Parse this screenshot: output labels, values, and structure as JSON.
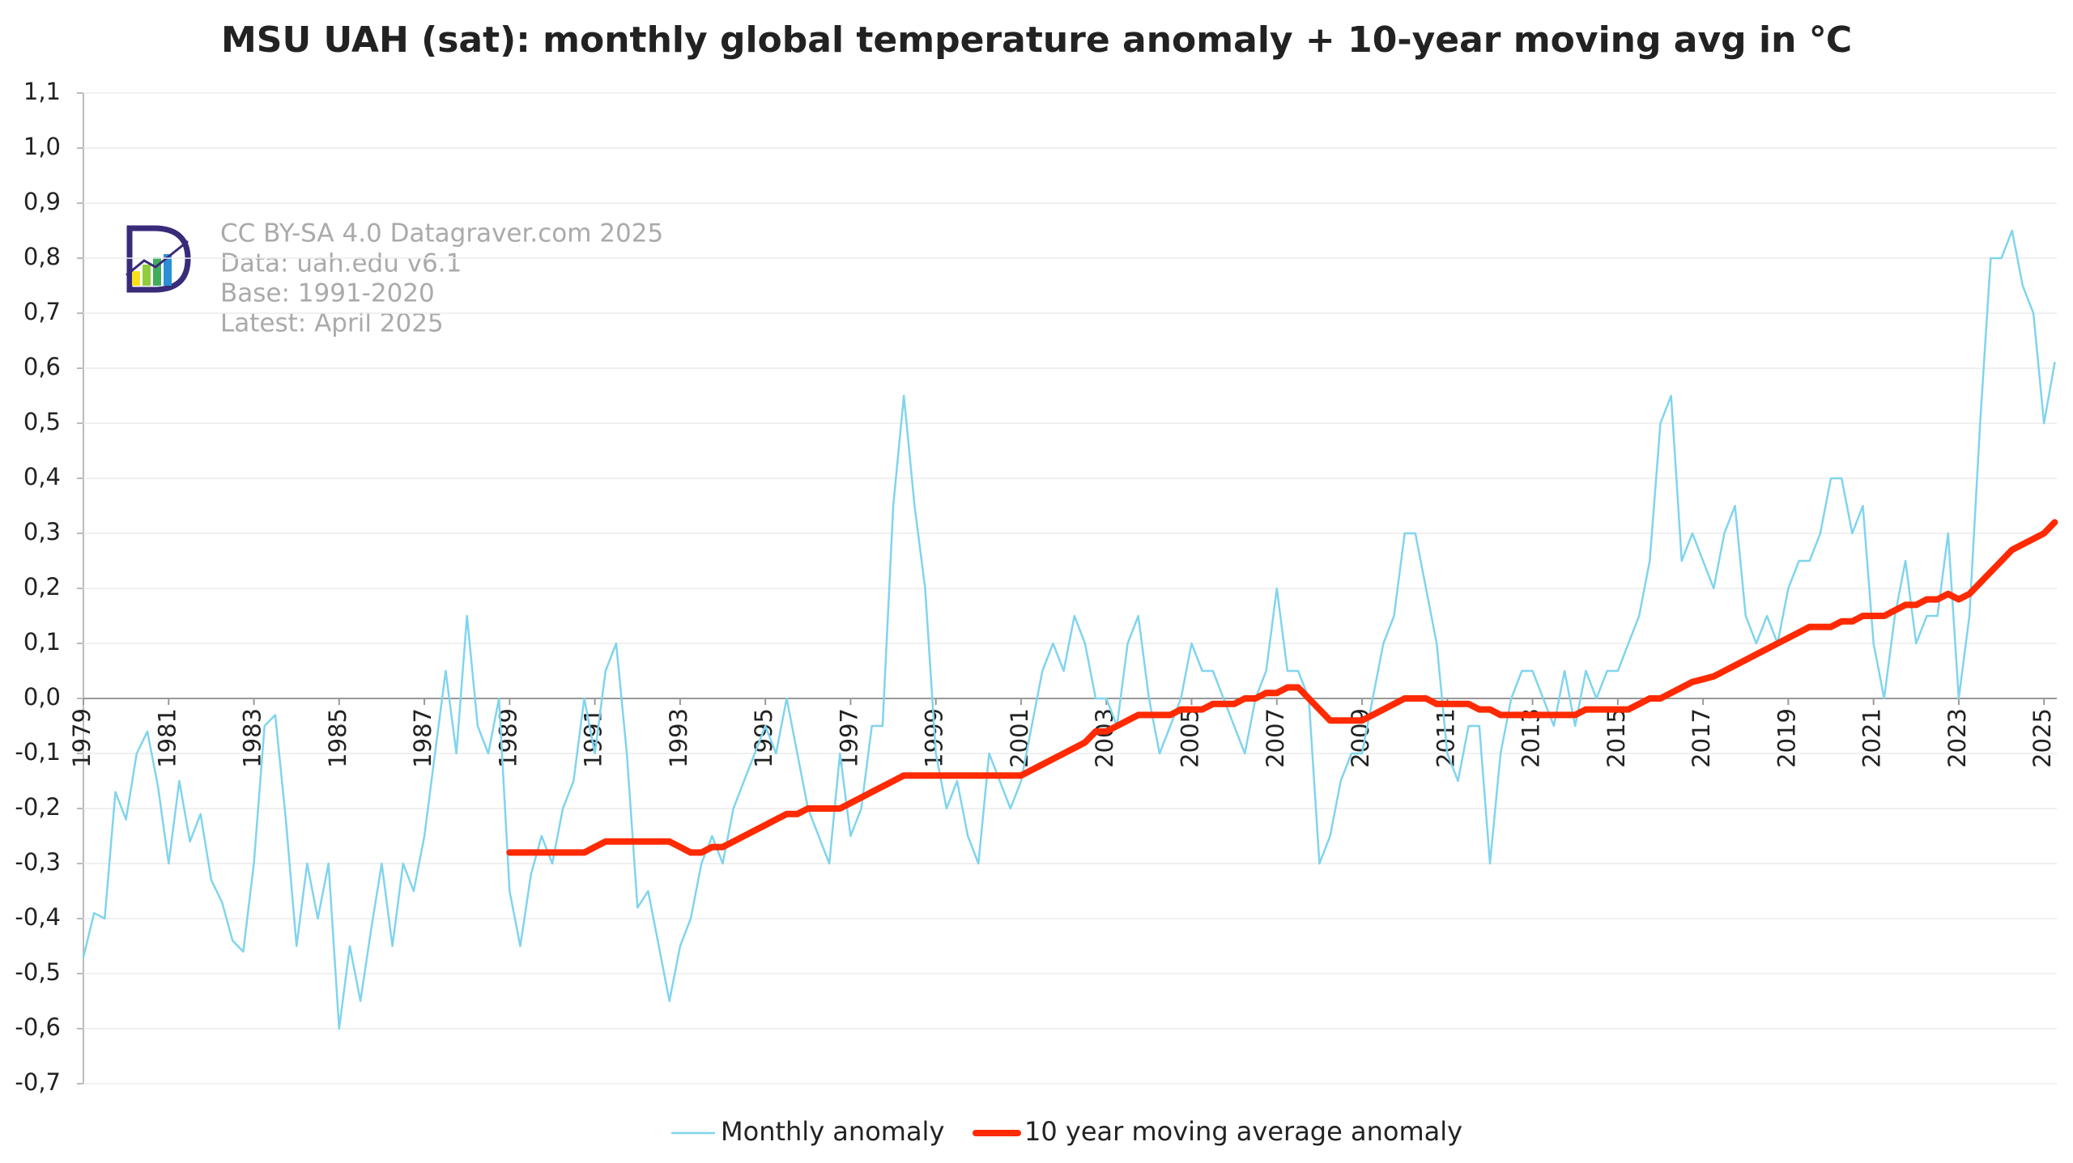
{
  "chart_data": {
    "type": "line",
    "title": "MSU UAH (sat): monthly global temperature anomaly + 10-year moving avg in ℃",
    "annotations": [
      "CC BY-SA 4.0 Datagraver.com 2025",
      "Data: uah.edu v6.1",
      "Base: 1991-2020",
      "Latest: April 2025"
    ],
    "x": [
      1979,
      1979.25,
      1979.5,
      1979.75,
      1980,
      1980.25,
      1980.5,
      1980.75,
      1981,
      1981.25,
      1981.5,
      1981.75,
      1982,
      1982.25,
      1982.5,
      1982.75,
      1983,
      1983.25,
      1983.5,
      1983.75,
      1984,
      1984.25,
      1984.5,
      1984.75,
      1985,
      1985.25,
      1985.5,
      1985.75,
      1986,
      1986.25,
      1986.5,
      1986.75,
      1987,
      1987.25,
      1987.5,
      1987.75,
      1988,
      1988.25,
      1988.5,
      1988.75,
      1989,
      1989.25,
      1989.5,
      1989.75,
      1990,
      1990.25,
      1990.5,
      1990.75,
      1991,
      1991.25,
      1991.5,
      1991.75,
      1992,
      1992.25,
      1992.5,
      1992.75,
      1993,
      1993.25,
      1993.5,
      1993.75,
      1994,
      1994.25,
      1994.5,
      1994.75,
      1995,
      1995.25,
      1995.5,
      1995.75,
      1996,
      1996.25,
      1996.5,
      1996.75,
      1997,
      1997.25,
      1997.5,
      1997.75,
      1998,
      1998.25,
      1998.5,
      1998.75,
      1999,
      1999.25,
      1999.5,
      1999.75,
      2000,
      2000.25,
      2000.5,
      2000.75,
      2001,
      2001.25,
      2001.5,
      2001.75,
      2002,
      2002.25,
      2002.5,
      2002.75,
      2003,
      2003.25,
      2003.5,
      2003.75,
      2004,
      2004.25,
      2004.5,
      2004.75,
      2005,
      2005.25,
      2005.5,
      2005.75,
      2006,
      2006.25,
      2006.5,
      2006.75,
      2007,
      2007.25,
      2007.5,
      2007.75,
      2008,
      2008.25,
      2008.5,
      2008.75,
      2009,
      2009.25,
      2009.5,
      2009.75,
      2010,
      2010.25,
      2010.5,
      2010.75,
      2011,
      2011.25,
      2011.5,
      2011.75,
      2012,
      2012.25,
      2012.5,
      2012.75,
      2013,
      2013.25,
      2013.5,
      2013.75,
      2014,
      2014.25,
      2014.5,
      2014.75,
      2015,
      2015.25,
      2015.5,
      2015.75,
      2016,
      2016.25,
      2016.5,
      2016.75,
      2017,
      2017.25,
      2017.5,
      2017.75,
      2018,
      2018.25,
      2018.5,
      2018.75,
      2019,
      2019.25,
      2019.5,
      2019.75,
      2020,
      2020.25,
      2020.5,
      2020.75,
      2021,
      2021.25,
      2021.5,
      2021.75,
      2022,
      2022.25,
      2022.5,
      2022.75,
      2023,
      2023.25,
      2023.5,
      2023.75,
      2024,
      2024.25,
      2024.5,
      2024.75,
      2025,
      2025.25
    ],
    "series": [
      {
        "name": "Monthly anomaly",
        "color": "#80d4ee",
        "width": 2.5,
        "values": [
          -0.47,
          -0.39,
          -0.4,
          -0.17,
          -0.22,
          -0.1,
          -0.06,
          -0.16,
          -0.3,
          -0.15,
          -0.26,
          -0.21,
          -0.33,
          -0.37,
          -0.44,
          -0.46,
          -0.3,
          -0.05,
          -0.03,
          -0.22,
          -0.45,
          -0.3,
          -0.4,
          -0.3,
          -0.6,
          -0.45,
          -0.55,
          -0.42,
          -0.3,
          -0.45,
          -0.3,
          -0.35,
          -0.25,
          -0.1,
          0.05,
          -0.1,
          0.15,
          -0.05,
          -0.1,
          0.0,
          -0.35,
          -0.45,
          -0.32,
          -0.25,
          -0.3,
          -0.2,
          -0.15,
          0.0,
          -0.1,
          0.05,
          0.1,
          -0.1,
          -0.38,
          -0.35,
          -0.45,
          -0.55,
          -0.45,
          -0.4,
          -0.3,
          -0.25,
          -0.3,
          -0.2,
          -0.15,
          -0.1,
          -0.05,
          -0.1,
          0.0,
          -0.1,
          -0.2,
          -0.25,
          -0.3,
          -0.1,
          -0.25,
          -0.2,
          -0.05,
          -0.05,
          0.35,
          0.55,
          0.35,
          0.2,
          -0.1,
          -0.2,
          -0.15,
          -0.25,
          -0.3,
          -0.1,
          -0.15,
          -0.2,
          -0.15,
          -0.05,
          0.05,
          0.1,
          0.05,
          0.15,
          0.1,
          0.0,
          0.0,
          -0.05,
          0.1,
          0.15,
          0.0,
          -0.1,
          -0.05,
          0.0,
          0.1,
          0.05,
          0.05,
          0.0,
          -0.05,
          -0.1,
          0.0,
          0.05,
          0.2,
          0.05,
          0.05,
          0.0,
          -0.3,
          -0.25,
          -0.15,
          -0.1,
          -0.1,
          0.0,
          0.1,
          0.15,
          0.3,
          0.3,
          0.2,
          0.1,
          -0.1,
          -0.15,
          -0.05,
          -0.05,
          -0.3,
          -0.1,
          0.0,
          0.05,
          0.05,
          0.0,
          -0.05,
          0.05,
          -0.05,
          0.05,
          0.0,
          0.05,
          0.05,
          0.1,
          0.15,
          0.25,
          0.5,
          0.55,
          0.25,
          0.3,
          0.25,
          0.2,
          0.3,
          0.35,
          0.15,
          0.1,
          0.15,
          0.1,
          0.2,
          0.25,
          0.25,
          0.3,
          0.4,
          0.4,
          0.3,
          0.35,
          0.1,
          0.0,
          0.15,
          0.25,
          0.1,
          0.15,
          0.15,
          0.3,
          0.0,
          0.15,
          0.5,
          0.8,
          0.8,
          0.85,
          0.75,
          0.7,
          0.5,
          0.61
        ]
      },
      {
        "name": "10 year moving average anomaly",
        "color": "#ff2a00",
        "width": 8,
        "values": [
          null,
          null,
          null,
          null,
          null,
          null,
          null,
          null,
          null,
          null,
          null,
          null,
          null,
          null,
          null,
          null,
          null,
          null,
          null,
          null,
          null,
          null,
          null,
          null,
          null,
          null,
          null,
          null,
          null,
          null,
          null,
          null,
          null,
          null,
          null,
          null,
          null,
          null,
          null,
          null,
          -0.28,
          -0.28,
          -0.28,
          -0.28,
          -0.28,
          -0.28,
          -0.28,
          -0.28,
          -0.27,
          -0.26,
          -0.26,
          -0.26,
          -0.26,
          -0.26,
          -0.26,
          -0.26,
          -0.27,
          -0.28,
          -0.28,
          -0.27,
          -0.27,
          -0.26,
          -0.25,
          -0.24,
          -0.23,
          -0.22,
          -0.21,
          -0.21,
          -0.2,
          -0.2,
          -0.2,
          -0.2,
          -0.19,
          -0.18,
          -0.17,
          -0.16,
          -0.15,
          -0.14,
          -0.14,
          -0.14,
          -0.14,
          -0.14,
          -0.14,
          -0.14,
          -0.14,
          -0.14,
          -0.14,
          -0.14,
          -0.14,
          -0.13,
          -0.12,
          -0.11,
          -0.1,
          -0.09,
          -0.08,
          -0.06,
          -0.06,
          -0.05,
          -0.04,
          -0.03,
          -0.03,
          -0.03,
          -0.03,
          -0.02,
          -0.02,
          -0.02,
          -0.01,
          -0.01,
          -0.01,
          0.0,
          0.0,
          0.01,
          0.01,
          0.02,
          0.02,
          0.0,
          -0.02,
          -0.04,
          -0.04,
          -0.04,
          -0.04,
          -0.03,
          -0.02,
          -0.01,
          0.0,
          0.0,
          0.0,
          -0.01,
          -0.01,
          -0.01,
          -0.01,
          -0.02,
          -0.02,
          -0.03,
          -0.03,
          -0.03,
          -0.03,
          -0.03,
          -0.03,
          -0.03,
          -0.03,
          -0.02,
          -0.02,
          -0.02,
          -0.02,
          -0.02,
          -0.01,
          0.0,
          0.0,
          0.01,
          0.02,
          0.03,
          0.035,
          0.04,
          0.05,
          0.06,
          0.07,
          0.08,
          0.09,
          0.1,
          0.11,
          0.12,
          0.13,
          0.13,
          0.13,
          0.14,
          0.14,
          0.15,
          0.15,
          0.15,
          0.16,
          0.17,
          0.17,
          0.18,
          0.18,
          0.19,
          0.18,
          0.19,
          0.21,
          0.23,
          0.25,
          0.27,
          0.28,
          0.29,
          0.3,
          0.32
        ]
      }
    ],
    "xlim": [
      1979,
      2025.3
    ],
    "xticks": [
      1979,
      1981,
      1983,
      1985,
      1987,
      1989,
      1991,
      1993,
      1995,
      1997,
      1999,
      2001,
      2003,
      2005,
      2007,
      2009,
      2011,
      2013,
      2015,
      2017,
      2019,
      2021,
      2023,
      2025
    ],
    "ylim": [
      -0.7,
      1.1
    ],
    "yticks": [
      {
        "value": -0.7,
        "label": "-0,7"
      },
      {
        "value": -0.6,
        "label": "-0,6"
      },
      {
        "value": -0.5,
        "label": "-0,5"
      },
      {
        "value": -0.4,
        "label": "-0,4"
      },
      {
        "value": -0.3,
        "label": "-0,3"
      },
      {
        "value": -0.2,
        "label": "-0,2"
      },
      {
        "value": -0.1,
        "label": "-0,1"
      },
      {
        "value": 0,
        "label": "0,0"
      },
      {
        "value": 0.1,
        "label": "0,1"
      },
      {
        "value": 0.2,
        "label": "0,2"
      },
      {
        "value": 0.3,
        "label": "0,3"
      },
      {
        "value": 0.4,
        "label": "0,4"
      },
      {
        "value": 0.5,
        "label": "0,5"
      },
      {
        "value": 0.6,
        "label": "0,6"
      },
      {
        "value": 0.7,
        "label": "0,7"
      },
      {
        "value": 0.8,
        "label": "0,8"
      },
      {
        "value": 0.9,
        "label": "0,9"
      },
      {
        "value": 1.0,
        "label": "1,0"
      },
      {
        "value": 1.1,
        "label": "1,1"
      }
    ],
    "grid": true,
    "legend": "bottom"
  }
}
